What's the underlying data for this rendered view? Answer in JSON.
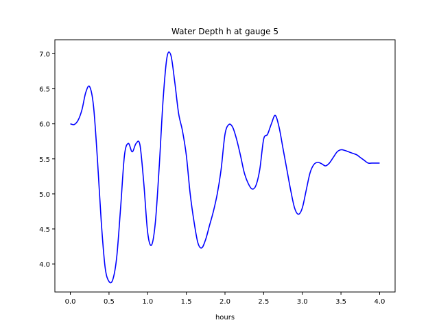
{
  "chart_data": {
    "type": "line",
    "title": "Water Depth h at gauge 5",
    "xlabel": "hours",
    "ylabel": "",
    "xlim": [
      -0.2,
      4.2
    ],
    "ylim": [
      3.6,
      7.2
    ],
    "xticks": [
      0.0,
      0.5,
      1.0,
      1.5,
      2.0,
      2.5,
      3.0,
      3.5,
      4.0
    ],
    "xtick_labels": [
      "0.0",
      "0.5",
      "1.0",
      "1.5",
      "2.0",
      "2.5",
      "3.0",
      "3.5",
      "4.0"
    ],
    "yticks": [
      4.0,
      4.5,
      5.0,
      5.5,
      6.0,
      6.5,
      7.0
    ],
    "ytick_labels": [
      "4.0",
      "4.5",
      "5.0",
      "5.5",
      "6.0",
      "6.5",
      "7.0"
    ],
    "grid": false,
    "series": [
      {
        "color": "#0000ff",
        "x": [
          0.0,
          0.05,
          0.1,
          0.15,
          0.2,
          0.25,
          0.3,
          0.35,
          0.4,
          0.45,
          0.5,
          0.55,
          0.6,
          0.65,
          0.7,
          0.75,
          0.8,
          0.85,
          0.9,
          0.95,
          1.0,
          1.05,
          1.1,
          1.15,
          1.2,
          1.25,
          1.3,
          1.35,
          1.4,
          1.45,
          1.5,
          1.55,
          1.6,
          1.65,
          1.7,
          1.75,
          1.8,
          1.85,
          1.9,
          1.95,
          2.0,
          2.05,
          2.1,
          2.15,
          2.2,
          2.25,
          2.3,
          2.35,
          2.4,
          2.45,
          2.5,
          2.55,
          2.6,
          2.65,
          2.7,
          2.75,
          2.8,
          2.85,
          2.9,
          2.95,
          3.0,
          3.05,
          3.1,
          3.15,
          3.2,
          3.25,
          3.3,
          3.35,
          3.4,
          3.45,
          3.5,
          3.55,
          3.6,
          3.65,
          3.7,
          3.75,
          3.8,
          3.85,
          3.9,
          3.95,
          4.0
        ],
        "values": [
          6.0,
          5.99,
          6.05,
          6.2,
          6.45,
          6.53,
          6.25,
          5.5,
          4.6,
          3.95,
          3.75,
          3.78,
          4.1,
          4.8,
          5.55,
          5.72,
          5.6,
          5.72,
          5.7,
          5.15,
          4.45,
          4.27,
          4.6,
          5.4,
          6.35,
          6.95,
          6.98,
          6.6,
          6.15,
          5.9,
          5.55,
          5.0,
          4.6,
          4.3,
          4.23,
          4.35,
          4.55,
          4.75,
          5.0,
          5.35,
          5.85,
          5.99,
          5.95,
          5.78,
          5.55,
          5.3,
          5.15,
          5.07,
          5.12,
          5.35,
          5.78,
          5.85,
          6.0,
          6.12,
          5.95,
          5.65,
          5.35,
          5.05,
          4.8,
          4.71,
          4.8,
          5.05,
          5.3,
          5.42,
          5.45,
          5.43,
          5.4,
          5.44,
          5.52,
          5.6,
          5.63,
          5.62,
          5.6,
          5.58,
          5.56,
          5.52,
          5.48,
          5.44,
          5.44,
          5.44,
          5.44
        ]
      }
    ]
  }
}
